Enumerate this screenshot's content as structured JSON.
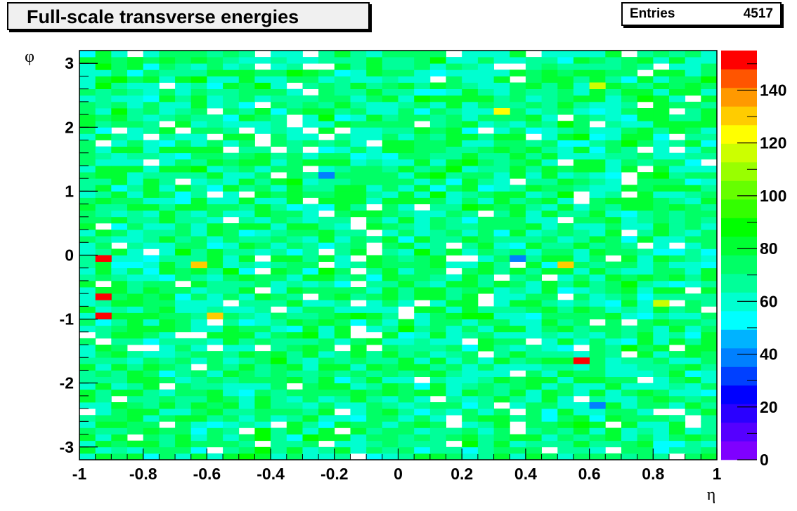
{
  "chart_data": {
    "type": "heatmap",
    "title": "Full-scale transverse energies",
    "stats": {
      "label": "Entries",
      "value": "4517"
    },
    "xlabel": "η",
    "ylabel": "φ",
    "xlim": [
      -1,
      1
    ],
    "ylim": [
      -3.2,
      3.2
    ],
    "x_ticks": [
      "-1",
      "-0.8",
      "-0.6",
      "-0.4",
      "-0.2",
      "0",
      "0.2",
      "0.4",
      "0.6",
      "0.8",
      "1"
    ],
    "y_ticks": [
      "-3",
      "-2",
      "-1",
      "0",
      "1",
      "2",
      "3"
    ],
    "z_range": [
      0,
      155
    ],
    "z_ticks": [
      "0",
      "20",
      "40",
      "60",
      "80",
      "100",
      "120",
      "140"
    ],
    "palette": [
      "#7f00ff",
      "#5500ff",
      "#2a00ff",
      "#0000ff",
      "#0040ff",
      "#0080ff",
      "#00b3ff",
      "#00ffff",
      "#00ffd0",
      "#00ff99",
      "#00ff66",
      "#00ff33",
      "#00ff00",
      "#33ff00",
      "#66ff00",
      "#99ff00",
      "#ccff00",
      "#ffff00",
      "#ffcc00",
      "#ff9900",
      "#ff5500",
      "#ff0000"
    ],
    "bins": {
      "nx": 40,
      "ny": 64
    },
    "typical_value_range": [
      55,
      85
    ],
    "notable_cells": [
      {
        "x": -0.95,
        "y": -0.05,
        "z": 150
      },
      {
        "x": -0.95,
        "y": -0.65,
        "z": 150
      },
      {
        "x": -0.95,
        "y": -0.95,
        "z": 150
      },
      {
        "x": 0.57,
        "y": -1.65,
        "z": 150
      },
      {
        "x": -0.62,
        "y": -0.2,
        "z": 130
      },
      {
        "x": -0.57,
        "y": -1.0,
        "z": 130
      },
      {
        "x": 0.52,
        "y": -0.2,
        "z": 130
      },
      {
        "x": 0.32,
        "y": 2.2,
        "z": 125
      },
      {
        "x": 0.62,
        "y": 2.65,
        "z": 115
      },
      {
        "x": 0.82,
        "y": -0.75,
        "z": 115
      },
      {
        "x": -0.22,
        "y": 1.25,
        "z": 40
      },
      {
        "x": 0.37,
        "y": -0.05,
        "z": 40
      },
      {
        "x": 0.62,
        "y": -2.35,
        "z": 40
      }
    ]
  }
}
